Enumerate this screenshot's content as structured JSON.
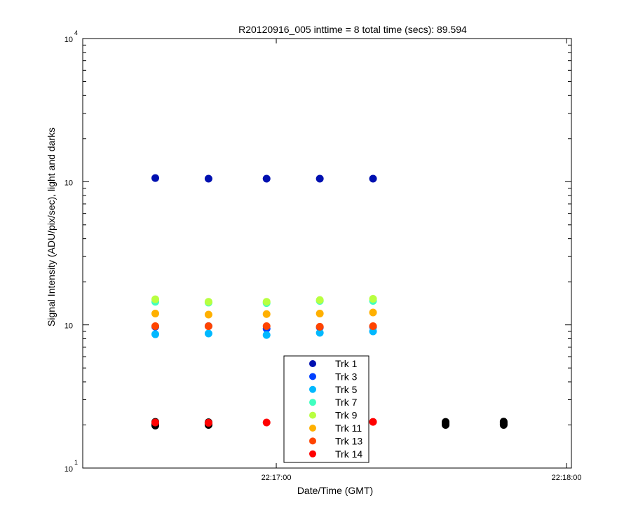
{
  "chart_data": {
    "type": "scatter",
    "title": "R20120916_005 inttime = 8 total time (secs): 89.594",
    "xlabel": "Date/Time (GMT)",
    "ylabel": "Signal Intensity (ADU/pix/sec), light and darks",
    "xscale": "time",
    "xlim": [
      "22:16:20",
      "22:18:01"
    ],
    "x_ticks": [
      "22:17:00",
      "22:18:00"
    ],
    "yscale": "log",
    "ylim": [
      10,
      10000
    ],
    "y_ticks": [
      {
        "base": "10",
        "exp": "1",
        "value": 10
      },
      {
        "base": "10",
        "exp": "",
        "value": 100
      },
      {
        "base": "10",
        "exp": "",
        "value": 1000
      },
      {
        "base": "10",
        "exp": "4",
        "value": 10000
      }
    ],
    "grid": false,
    "legend_position": "bottom-center",
    "series": [
      {
        "name": "Trk 1",
        "color": "#0010b0",
        "x": [
          "22:16:35",
          "22:16:46",
          "22:16:58",
          "22:17:09",
          "22:17:20"
        ],
        "y": [
          1060,
          1050,
          1050,
          1050,
          1050
        ]
      },
      {
        "name": "Trk 3",
        "color": "#0040ff",
        "x": [
          "22:16:35",
          "22:16:46",
          "22:16:58",
          "22:17:09",
          "22:17:20"
        ],
        "y": [
          97,
          98,
          94,
          96,
          97
        ]
      },
      {
        "name": "Trk 5",
        "color": "#00b8ff",
        "x": [
          "22:16:35",
          "22:16:46",
          "22:16:58",
          "22:17:09",
          "22:17:20"
        ],
        "y": [
          86,
          87,
          85,
          88,
          90
        ]
      },
      {
        "name": "Trk 7",
        "color": "#40ffc0",
        "x": [
          "22:16:35",
          "22:16:46",
          "22:16:58",
          "22:17:09",
          "22:17:20"
        ],
        "y": [
          145,
          143,
          142,
          147,
          147
        ]
      },
      {
        "name": "Trk 9",
        "color": "#b8ff40",
        "x": [
          "22:16:35",
          "22:16:46",
          "22:16:58",
          "22:17:09",
          "22:17:20"
        ],
        "y": [
          151,
          145,
          145,
          149,
          152
        ]
      },
      {
        "name": "Trk 11",
        "color": "#ffb000",
        "x": [
          "22:16:35",
          "22:16:46",
          "22:16:58",
          "22:17:09",
          "22:17:20"
        ],
        "y": [
          120,
          118,
          119,
          120,
          122
        ]
      },
      {
        "name": "Trk 13",
        "color": "#ff4400",
        "x": [
          "22:16:35",
          "22:16:46",
          "22:16:58",
          "22:17:09",
          "22:17:20"
        ],
        "y": [
          98,
          98,
          98,
          97,
          98
        ]
      },
      {
        "name": "Trk 14",
        "color": "#ff0000",
        "x": [
          "22:16:35",
          "22:16:46",
          "22:16:58",
          "22:17:09",
          "22:17:20"
        ],
        "y": [
          20.8,
          20.7,
          20.8,
          20.8,
          21
        ]
      },
      {
        "name": "",
        "color": "#000000",
        "x": [
          "22:16:35",
          "22:16:35",
          "22:16:35",
          "22:16:35",
          "22:16:46",
          "22:16:46",
          "22:16:46",
          "22:16:46",
          "22:17:35",
          "22:17:35",
          "22:17:35",
          "22:17:35",
          "22:17:47",
          "22:17:47",
          "22:17:47",
          "22:17:47"
        ],
        "y": [
          19.8,
          20.1,
          20.5,
          21,
          20,
          20.3,
          20.6,
          20.9,
          20,
          20.3,
          20.6,
          21,
          20,
          20.3,
          20.7,
          21.1
        ]
      }
    ]
  }
}
